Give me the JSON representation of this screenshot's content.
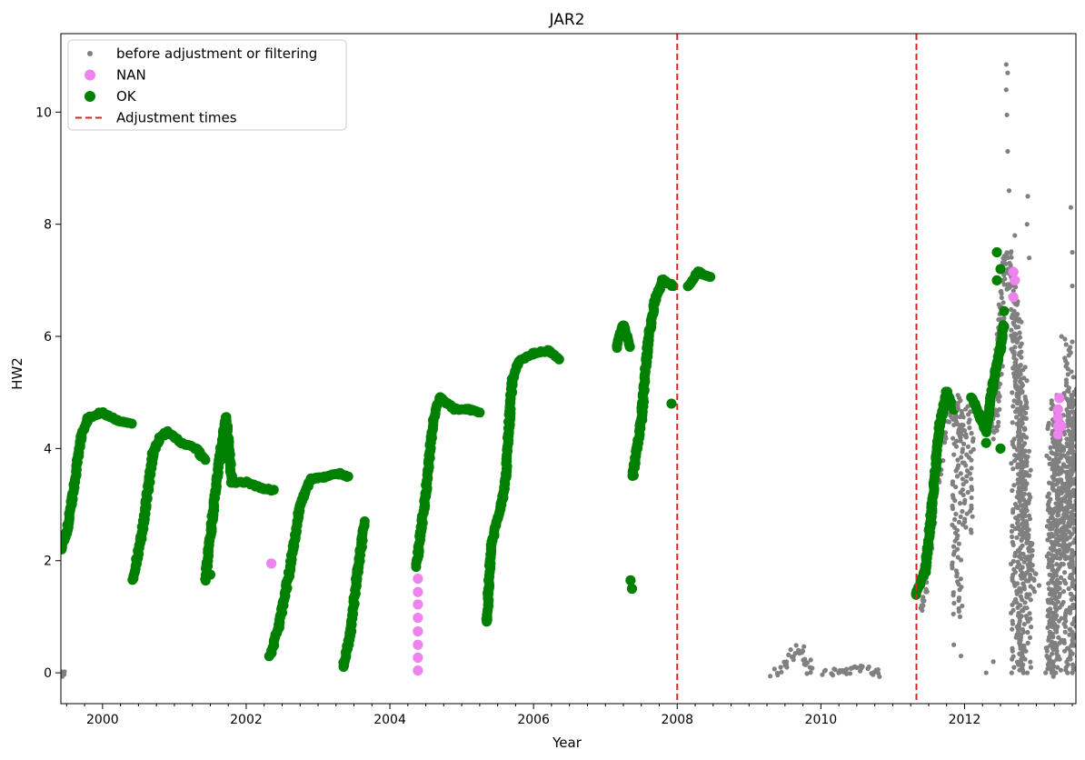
{
  "chart_data": {
    "type": "scatter",
    "title": "JAR2",
    "xlabel": "Year",
    "ylabel": "HW2",
    "xlim": [
      1999.42,
      2013.55
    ],
    "ylim": [
      -0.55,
      11.4
    ],
    "xticks": [
      2000,
      2002,
      2004,
      2006,
      2008,
      2010,
      2012
    ],
    "xtick_labels": [
      "2000",
      "2002",
      "2004",
      "2006",
      "2008",
      "2010",
      "2012"
    ],
    "yticks": [
      0,
      2,
      4,
      6,
      8,
      10
    ],
    "ytick_labels": [
      "0",
      "2",
      "4",
      "6",
      "8",
      "10"
    ],
    "grid": false,
    "legend_position": "top-left",
    "legend": [
      {
        "label": "before adjustment or filtering",
        "marker": "small-dot",
        "color": "#808080"
      },
      {
        "label": "NAN",
        "marker": "dot",
        "color": "#ee82ee"
      },
      {
        "label": "OK",
        "marker": "dot",
        "color": "#008000"
      },
      {
        "label": "Adjustment times",
        "marker": "dashed-line",
        "color": "#d62728"
      }
    ],
    "adjustment_times": [
      2008.0,
      2011.33
    ],
    "series": [
      {
        "name": "before adjustment or filtering",
        "color": "#808080",
        "segments": [
          [
            [
              1999.42,
              0.0
            ],
            [
              1999.45,
              0.0
            ]
          ],
          [
            [
              2009.35,
              0.0
            ],
            [
              2009.5,
              0.1
            ],
            [
              2009.6,
              0.3
            ],
            [
              2009.7,
              0.45
            ],
            [
              2009.8,
              0.2
            ],
            [
              2009.85,
              0.0
            ]
          ],
          [
            [
              2010.05,
              0.0
            ],
            [
              2010.3,
              0.05
            ],
            [
              2010.6,
              0.05
            ],
            [
              2010.85,
              0.0
            ]
          ],
          [
            [
              2011.38,
              1.1
            ],
            [
              2011.5,
              2.2
            ],
            [
              2011.6,
              3.4
            ],
            [
              2011.7,
              4.3
            ],
            [
              2011.8,
              4.8
            ],
            [
              2011.9,
              4.3
            ],
            [
              2012.0,
              4.2
            ]
          ],
          [
            [
              2012.4,
              4.2
            ],
            [
              2012.5,
              6.0
            ],
            [
              2012.6,
              7.5
            ],
            [
              2012.7,
              6.5
            ],
            [
              2012.8,
              4.0
            ],
            [
              2012.9,
              2.0
            ],
            [
              2013.0,
              1.5
            ]
          ],
          [
            [
              2013.18,
              0.0
            ],
            [
              2013.3,
              4.5
            ],
            [
              2013.4,
              2.0
            ],
            [
              2013.5,
              5.0
            ],
            [
              2013.55,
              3.0
            ]
          ]
        ],
        "extra_points": [
          [
            2012.58,
            10.85
          ],
          [
            2012.6,
            10.7
          ],
          [
            2012.58,
            10.4
          ],
          [
            2012.59,
            9.95
          ],
          [
            2012.6,
            9.3
          ],
          [
            2012.62,
            8.6
          ],
          [
            2012.88,
            8.5
          ],
          [
            2012.87,
            8.0
          ],
          [
            2012.7,
            7.8
          ],
          [
            2013.48,
            8.3
          ],
          [
            2013.5,
            7.5
          ],
          [
            2013.5,
            6.9
          ],
          [
            2012.9,
            7.4
          ],
          [
            2012.4,
            0.2
          ],
          [
            2012.3,
            0.0
          ],
          [
            2013.35,
            6.0
          ],
          [
            2011.85,
            0.5
          ],
          [
            2011.95,
            0.3
          ]
        ]
      },
      {
        "name": "NAN",
        "color": "#ee82ee",
        "points": [
          [
            2002.35,
            1.95
          ],
          [
            2004.39,
            0.04
          ],
          [
            2004.39,
            0.27
          ],
          [
            2004.39,
            0.5
          ],
          [
            2004.39,
            0.74
          ],
          [
            2004.39,
            0.98
          ],
          [
            2004.39,
            1.22
          ],
          [
            2004.39,
            1.44
          ],
          [
            2004.39,
            1.68
          ],
          [
            2012.68,
            6.7
          ],
          [
            2012.68,
            7.15
          ],
          [
            2012.7,
            7.0
          ],
          [
            2013.3,
            4.25
          ],
          [
            2013.3,
            4.4
          ],
          [
            2013.3,
            4.55
          ],
          [
            2013.3,
            4.7
          ],
          [
            2013.32,
            4.9
          ],
          [
            2013.35,
            4.4
          ]
        ]
      },
      {
        "name": "OK",
        "color": "#008000",
        "segments": [
          [
            [
              1999.42,
              2.2
            ],
            [
              1999.5,
              2.5
            ],
            [
              1999.6,
              3.3
            ],
            [
              1999.7,
              4.2
            ],
            [
              1999.8,
              4.55
            ],
            [
              2000.0,
              4.65
            ],
            [
              2000.2,
              4.5
            ],
            [
              2000.4,
              4.45
            ]
          ],
          [
            [
              2000.42,
              1.65
            ],
            [
              2000.55,
              2.5
            ],
            [
              2000.7,
              3.9
            ],
            [
              2000.8,
              4.2
            ],
            [
              2000.9,
              4.3
            ],
            [
              2001.1,
              4.1
            ],
            [
              2001.3,
              4.0
            ],
            [
              2001.42,
              3.8
            ]
          ],
          [
            [
              2001.43,
              1.65
            ],
            [
              2001.55,
              3.0
            ],
            [
              2001.65,
              4.0
            ],
            [
              2001.72,
              4.55
            ],
            [
              2001.8,
              3.4
            ],
            [
              2002.0,
              3.4
            ],
            [
              2002.2,
              3.3
            ],
            [
              2002.38,
              3.25
            ]
          ],
          [
            [
              2002.33,
              0.3
            ],
            [
              2002.45,
              0.8
            ],
            [
              2002.6,
              1.8
            ],
            [
              2002.75,
              3.0
            ],
            [
              2002.9,
              3.45
            ],
            [
              2003.1,
              3.5
            ],
            [
              2003.3,
              3.55
            ],
            [
              2003.42,
              3.5
            ]
          ],
          [
            [
              2003.35,
              0.1
            ],
            [
              2003.45,
              0.7
            ],
            [
              2003.55,
              1.8
            ],
            [
              2003.65,
              2.7
            ]
          ],
          [
            [
              2004.37,
              1.9
            ],
            [
              2004.5,
              3.2
            ],
            [
              2004.6,
              4.5
            ],
            [
              2004.7,
              4.9
            ],
            [
              2004.9,
              4.7
            ],
            [
              2005.1,
              4.7
            ],
            [
              2005.25,
              4.65
            ]
          ],
          [
            [
              2005.35,
              0.9
            ],
            [
              2005.4,
              2.2
            ],
            [
              2005.6,
              3.3
            ],
            [
              2005.7,
              5.2
            ],
            [
              2005.8,
              5.55
            ],
            [
              2006.0,
              5.7
            ],
            [
              2006.2,
              5.75
            ],
            [
              2006.35,
              5.6
            ]
          ],
          [
            [
              2007.15,
              5.8
            ],
            [
              2007.25,
              6.2
            ],
            [
              2007.35,
              5.8
            ]
          ],
          [
            [
              2007.38,
              3.5
            ],
            [
              2007.5,
              4.5
            ],
            [
              2007.6,
              6.0
            ],
            [
              2007.7,
              6.7
            ],
            [
              2007.8,
              7.0
            ],
            [
              2007.95,
              6.9
            ]
          ],
          [
            [
              2008.15,
              6.9
            ],
            [
              2008.3,
              7.15
            ],
            [
              2008.45,
              7.05
            ]
          ],
          [
            [
              2011.32,
              1.4
            ],
            [
              2011.45,
              1.8
            ],
            [
              2011.55,
              3.0
            ],
            [
              2011.65,
              4.4
            ],
            [
              2011.75,
              5.0
            ],
            [
              2011.85,
              4.7
            ]
          ],
          [
            [
              2012.1,
              4.9
            ],
            [
              2012.2,
              4.6
            ],
            [
              2012.3,
              4.3
            ],
            [
              2012.4,
              5.2
            ],
            [
              2012.5,
              5.8
            ],
            [
              2012.55,
              6.2
            ]
          ]
        ],
        "extra_points": [
          [
            2001.45,
            1.9
          ],
          [
            2001.5,
            1.75
          ],
          [
            2007.35,
            1.65
          ],
          [
            2007.37,
            1.5
          ],
          [
            2007.92,
            4.8
          ],
          [
            2012.45,
            7.5
          ],
          [
            2012.5,
            7.2
          ],
          [
            2012.45,
            7.0
          ],
          [
            2012.3,
            4.1
          ],
          [
            2012.5,
            4.0
          ],
          [
            2012.55,
            6.45
          ]
        ]
      }
    ]
  }
}
